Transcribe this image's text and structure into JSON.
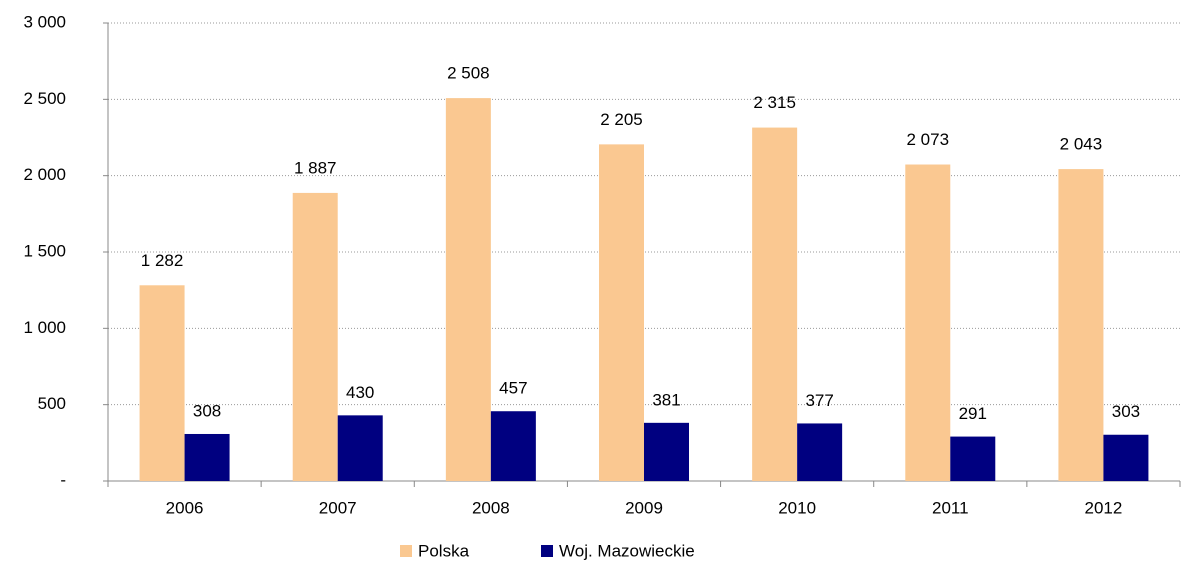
{
  "chart_data": {
    "type": "bar",
    "categories": [
      "2006",
      "2007",
      "2008",
      "2009",
      "2010",
      "2011",
      "2012"
    ],
    "series": [
      {
        "name": "Polska",
        "color": "#fac891",
        "values": [
          1282,
          1887,
          2508,
          2205,
          2315,
          2073,
          2043
        ],
        "value_labels": [
          "1 282",
          "1 887",
          "2 508",
          "2 205",
          "2 315",
          "2 073",
          "2 043"
        ]
      },
      {
        "name": "Woj. Mazowieckie",
        "color": "#000080",
        "values": [
          308,
          430,
          457,
          381,
          377,
          291,
          303
        ]
      }
    ],
    "ylim": [
      0,
      3000
    ],
    "yticks": [
      {
        "value": 0,
        "label": "-"
      },
      500,
      {
        "value": 1000,
        "label": "1 000"
      },
      {
        "value": 1500,
        "label": "1 500"
      },
      {
        "value": 2000,
        "label": "2 000"
      },
      {
        "value": 2500,
        "label": "2 500"
      },
      {
        "value": 3000,
        "label": "3 000"
      }
    ],
    "grid": true,
    "legend": "bottom"
  }
}
